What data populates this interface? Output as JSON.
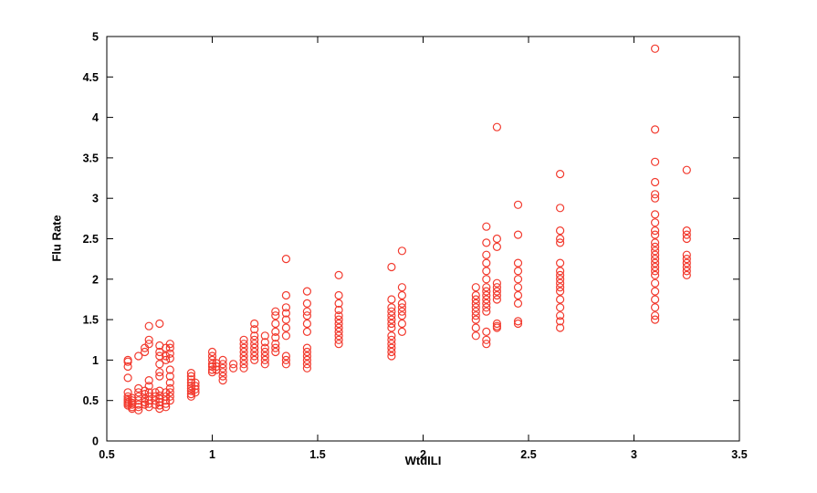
{
  "figure": {
    "background": "#ffffff",
    "axis_color": "#000000"
  },
  "chart_data": {
    "type": "scatter",
    "title": "",
    "xlabel": "WtdILI",
    "ylabel": "Flu Rate",
    "xlim": [
      0.5,
      3.5
    ],
    "ylim": [
      0,
      5
    ],
    "grid": false,
    "legend": null,
    "x_ticks": [
      0.5,
      1,
      1.5,
      2,
      2.5,
      3,
      3.5
    ],
    "y_ticks": [
      0,
      0.5,
      1,
      1.5,
      2,
      2.5,
      3,
      3.5,
      4,
      4.5,
      5
    ],
    "x_tick_labels": [
      "0.5",
      "1",
      "1.5",
      "2",
      "2.5",
      "3",
      "3.5"
    ],
    "y_tick_labels": [
      "0",
      "0.5",
      "1",
      "1.5",
      "2",
      "2.5",
      "3",
      "3.5",
      "4",
      "4.5",
      "5"
    ],
    "marker": {
      "shape": "circle",
      "color": "#f23a2e",
      "fill": "none",
      "size": 4
    },
    "points": [
      [
        0.6,
        0.44
      ],
      [
        0.6,
        0.46
      ],
      [
        0.6,
        0.48
      ],
      [
        0.6,
        0.5
      ],
      [
        0.6,
        0.52
      ],
      [
        0.6,
        0.55
      ],
      [
        0.6,
        0.6
      ],
      [
        0.6,
        0.78
      ],
      [
        0.6,
        0.92
      ],
      [
        0.6,
        0.98
      ],
      [
        0.6,
        1.0
      ],
      [
        0.62,
        0.4
      ],
      [
        0.62,
        0.42
      ],
      [
        0.62,
        0.45
      ],
      [
        0.62,
        0.47
      ],
      [
        0.62,
        0.5
      ],
      [
        0.62,
        0.53
      ],
      [
        0.65,
        0.38
      ],
      [
        0.65,
        0.42
      ],
      [
        0.65,
        0.45
      ],
      [
        0.65,
        0.5
      ],
      [
        0.65,
        0.55
      ],
      [
        0.65,
        0.6
      ],
      [
        0.65,
        0.65
      ],
      [
        0.65,
        1.05
      ],
      [
        0.68,
        0.45
      ],
      [
        0.68,
        0.48
      ],
      [
        0.68,
        0.52
      ],
      [
        0.68,
        0.58
      ],
      [
        0.68,
        0.62
      ],
      [
        0.68,
        1.1
      ],
      [
        0.68,
        1.15
      ],
      [
        0.7,
        0.42
      ],
      [
        0.7,
        0.46
      ],
      [
        0.7,
        0.5
      ],
      [
        0.7,
        0.55
      ],
      [
        0.7,
        0.6
      ],
      [
        0.7,
        0.68
      ],
      [
        0.7,
        0.75
      ],
      [
        0.7,
        1.2
      ],
      [
        0.7,
        1.25
      ],
      [
        0.7,
        1.42
      ],
      [
        0.73,
        0.45
      ],
      [
        0.73,
        0.5
      ],
      [
        0.73,
        0.55
      ],
      [
        0.73,
        0.6
      ],
      [
        0.75,
        0.4
      ],
      [
        0.75,
        0.44
      ],
      [
        0.75,
        0.48
      ],
      [
        0.75,
        0.52
      ],
      [
        0.75,
        0.56
      ],
      [
        0.75,
        0.62
      ],
      [
        0.75,
        0.8
      ],
      [
        0.75,
        0.85
      ],
      [
        0.75,
        0.95
      ],
      [
        0.75,
        1.05
      ],
      [
        0.75,
        1.1
      ],
      [
        0.75,
        1.18
      ],
      [
        0.75,
        1.45
      ],
      [
        0.78,
        0.42
      ],
      [
        0.78,
        0.46
      ],
      [
        0.78,
        0.5
      ],
      [
        0.78,
        0.55
      ],
      [
        0.78,
        0.6
      ],
      [
        0.78,
        1.0
      ],
      [
        0.78,
        1.05
      ],
      [
        0.78,
        1.15
      ],
      [
        0.8,
        0.5
      ],
      [
        0.8,
        0.55
      ],
      [
        0.8,
        0.6
      ],
      [
        0.8,
        0.65
      ],
      [
        0.8,
        0.72
      ],
      [
        0.8,
        0.8
      ],
      [
        0.8,
        0.88
      ],
      [
        0.8,
        1.02
      ],
      [
        0.8,
        1.08
      ],
      [
        0.8,
        1.15
      ],
      [
        0.8,
        1.2
      ],
      [
        0.9,
        0.55
      ],
      [
        0.9,
        0.58
      ],
      [
        0.9,
        0.62
      ],
      [
        0.9,
        0.65
      ],
      [
        0.9,
        0.68
      ],
      [
        0.9,
        0.72
      ],
      [
        0.9,
        0.76
      ],
      [
        0.9,
        0.8
      ],
      [
        0.9,
        0.84
      ],
      [
        0.92,
        0.6
      ],
      [
        0.92,
        0.64
      ],
      [
        0.92,
        0.68
      ],
      [
        0.92,
        0.72
      ],
      [
        1.0,
        0.85
      ],
      [
        1.0,
        0.88
      ],
      [
        1.0,
        0.92
      ],
      [
        1.0,
        0.95
      ],
      [
        1.0,
        1.0
      ],
      [
        1.0,
        1.05
      ],
      [
        1.0,
        1.1
      ],
      [
        1.02,
        0.88
      ],
      [
        1.02,
        0.92
      ],
      [
        1.02,
        0.96
      ],
      [
        1.05,
        0.75
      ],
      [
        1.05,
        0.8
      ],
      [
        1.05,
        0.85
      ],
      [
        1.05,
        0.9
      ],
      [
        1.05,
        0.95
      ],
      [
        1.05,
        1.0
      ],
      [
        1.1,
        0.9
      ],
      [
        1.1,
        0.95
      ],
      [
        1.15,
        0.9
      ],
      [
        1.15,
        0.95
      ],
      [
        1.15,
        1.0
      ],
      [
        1.15,
        1.05
      ],
      [
        1.15,
        1.1
      ],
      [
        1.15,
        1.15
      ],
      [
        1.15,
        1.2
      ],
      [
        1.15,
        1.25
      ],
      [
        1.2,
        1.0
      ],
      [
        1.2,
        1.05
      ],
      [
        1.2,
        1.1
      ],
      [
        1.2,
        1.15
      ],
      [
        1.2,
        1.2
      ],
      [
        1.2,
        1.25
      ],
      [
        1.2,
        1.3
      ],
      [
        1.2,
        1.38
      ],
      [
        1.2,
        1.45
      ],
      [
        1.25,
        0.95
      ],
      [
        1.25,
        1.0
      ],
      [
        1.25,
        1.05
      ],
      [
        1.25,
        1.1
      ],
      [
        1.25,
        1.15
      ],
      [
        1.25,
        1.22
      ],
      [
        1.25,
        1.3
      ],
      [
        1.3,
        1.1
      ],
      [
        1.3,
        1.15
      ],
      [
        1.3,
        1.2
      ],
      [
        1.3,
        1.28
      ],
      [
        1.3,
        1.35
      ],
      [
        1.3,
        1.45
      ],
      [
        1.3,
        1.55
      ],
      [
        1.3,
        1.6
      ],
      [
        1.35,
        0.95
      ],
      [
        1.35,
        1.0
      ],
      [
        1.35,
        1.05
      ],
      [
        1.35,
        1.3
      ],
      [
        1.35,
        1.4
      ],
      [
        1.35,
        1.5
      ],
      [
        1.35,
        1.58
      ],
      [
        1.35,
        1.65
      ],
      [
        1.35,
        1.8
      ],
      [
        1.35,
        2.25
      ],
      [
        1.45,
        0.9
      ],
      [
        1.45,
        0.95
      ],
      [
        1.45,
        1.0
      ],
      [
        1.45,
        1.05
      ],
      [
        1.45,
        1.1
      ],
      [
        1.45,
        1.15
      ],
      [
        1.45,
        1.35
      ],
      [
        1.45,
        1.45
      ],
      [
        1.45,
        1.55
      ],
      [
        1.45,
        1.6
      ],
      [
        1.45,
        1.7
      ],
      [
        1.45,
        1.85
      ],
      [
        1.6,
        1.2
      ],
      [
        1.6,
        1.25
      ],
      [
        1.6,
        1.3
      ],
      [
        1.6,
        1.35
      ],
      [
        1.6,
        1.4
      ],
      [
        1.6,
        1.45
      ],
      [
        1.6,
        1.5
      ],
      [
        1.6,
        1.55
      ],
      [
        1.6,
        1.62
      ],
      [
        1.6,
        1.7
      ],
      [
        1.6,
        1.8
      ],
      [
        1.6,
        2.05
      ],
      [
        1.85,
        1.05
      ],
      [
        1.85,
        1.1
      ],
      [
        1.85,
        1.15
      ],
      [
        1.85,
        1.2
      ],
      [
        1.85,
        1.25
      ],
      [
        1.85,
        1.3
      ],
      [
        1.85,
        1.4
      ],
      [
        1.85,
        1.45
      ],
      [
        1.85,
        1.5
      ],
      [
        1.85,
        1.55
      ],
      [
        1.85,
        1.6
      ],
      [
        1.85,
        1.65
      ],
      [
        1.85,
        1.75
      ],
      [
        1.85,
        2.15
      ],
      [
        1.9,
        1.35
      ],
      [
        1.9,
        1.45
      ],
      [
        1.9,
        1.55
      ],
      [
        1.9,
        1.6
      ],
      [
        1.9,
        1.65
      ],
      [
        1.9,
        1.7
      ],
      [
        1.9,
        1.8
      ],
      [
        1.9,
        1.9
      ],
      [
        1.9,
        2.35
      ],
      [
        2.25,
        1.3
      ],
      [
        2.25,
        1.4
      ],
      [
        2.25,
        1.5
      ],
      [
        2.25,
        1.55
      ],
      [
        2.25,
        1.6
      ],
      [
        2.25,
        1.65
      ],
      [
        2.25,
        1.7
      ],
      [
        2.25,
        1.75
      ],
      [
        2.25,
        1.8
      ],
      [
        2.25,
        1.9
      ],
      [
        2.3,
        1.2
      ],
      [
        2.3,
        1.25
      ],
      [
        2.3,
        1.35
      ],
      [
        2.3,
        1.6
      ],
      [
        2.3,
        1.65
      ],
      [
        2.3,
        1.7
      ],
      [
        2.3,
        1.75
      ],
      [
        2.3,
        1.8
      ],
      [
        2.3,
        1.85
      ],
      [
        2.3,
        1.9
      ],
      [
        2.3,
        2.0
      ],
      [
        2.3,
        2.1
      ],
      [
        2.3,
        2.2
      ],
      [
        2.3,
        2.3
      ],
      [
        2.3,
        2.45
      ],
      [
        2.3,
        2.65
      ],
      [
        2.35,
        1.4
      ],
      [
        2.35,
        1.42
      ],
      [
        2.35,
        1.45
      ],
      [
        2.35,
        1.75
      ],
      [
        2.35,
        1.8
      ],
      [
        2.35,
        1.85
      ],
      [
        2.35,
        1.9
      ],
      [
        2.35,
        1.95
      ],
      [
        2.35,
        2.4
      ],
      [
        2.35,
        2.5
      ],
      [
        2.35,
        3.88
      ],
      [
        2.45,
        1.45
      ],
      [
        2.45,
        1.48
      ],
      [
        2.45,
        1.7
      ],
      [
        2.45,
        1.8
      ],
      [
        2.45,
        1.9
      ],
      [
        2.45,
        2.0
      ],
      [
        2.45,
        2.1
      ],
      [
        2.45,
        2.2
      ],
      [
        2.45,
        2.55
      ],
      [
        2.45,
        2.92
      ],
      [
        2.65,
        1.4
      ],
      [
        2.65,
        1.48
      ],
      [
        2.65,
        1.55
      ],
      [
        2.65,
        1.65
      ],
      [
        2.65,
        1.75
      ],
      [
        2.65,
        1.85
      ],
      [
        2.65,
        1.9
      ],
      [
        2.65,
        1.95
      ],
      [
        2.65,
        2.0
      ],
      [
        2.65,
        2.05
      ],
      [
        2.65,
        2.1
      ],
      [
        2.65,
        2.2
      ],
      [
        2.65,
        2.45
      ],
      [
        2.65,
        2.5
      ],
      [
        2.65,
        2.6
      ],
      [
        2.65,
        2.88
      ],
      [
        2.65,
        3.3
      ],
      [
        3.1,
        1.5
      ],
      [
        3.1,
        1.55
      ],
      [
        3.1,
        1.65
      ],
      [
        3.1,
        1.75
      ],
      [
        3.1,
        1.85
      ],
      [
        3.1,
        1.95
      ],
      [
        3.1,
        2.05
      ],
      [
        3.1,
        2.1
      ],
      [
        3.1,
        2.15
      ],
      [
        3.1,
        2.2
      ],
      [
        3.1,
        2.25
      ],
      [
        3.1,
        2.3
      ],
      [
        3.1,
        2.35
      ],
      [
        3.1,
        2.4
      ],
      [
        3.1,
        2.45
      ],
      [
        3.1,
        2.55
      ],
      [
        3.1,
        2.6
      ],
      [
        3.1,
        2.7
      ],
      [
        3.1,
        2.8
      ],
      [
        3.1,
        3.0
      ],
      [
        3.1,
        3.05
      ],
      [
        3.1,
        3.2
      ],
      [
        3.1,
        3.45
      ],
      [
        3.1,
        3.85
      ],
      [
        3.1,
        4.85
      ],
      [
        3.25,
        2.05
      ],
      [
        3.25,
        2.1
      ],
      [
        3.25,
        2.15
      ],
      [
        3.25,
        2.2
      ],
      [
        3.25,
        2.25
      ],
      [
        3.25,
        2.3
      ],
      [
        3.25,
        2.5
      ],
      [
        3.25,
        2.55
      ],
      [
        3.25,
        2.6
      ],
      [
        3.25,
        3.35
      ]
    ]
  }
}
